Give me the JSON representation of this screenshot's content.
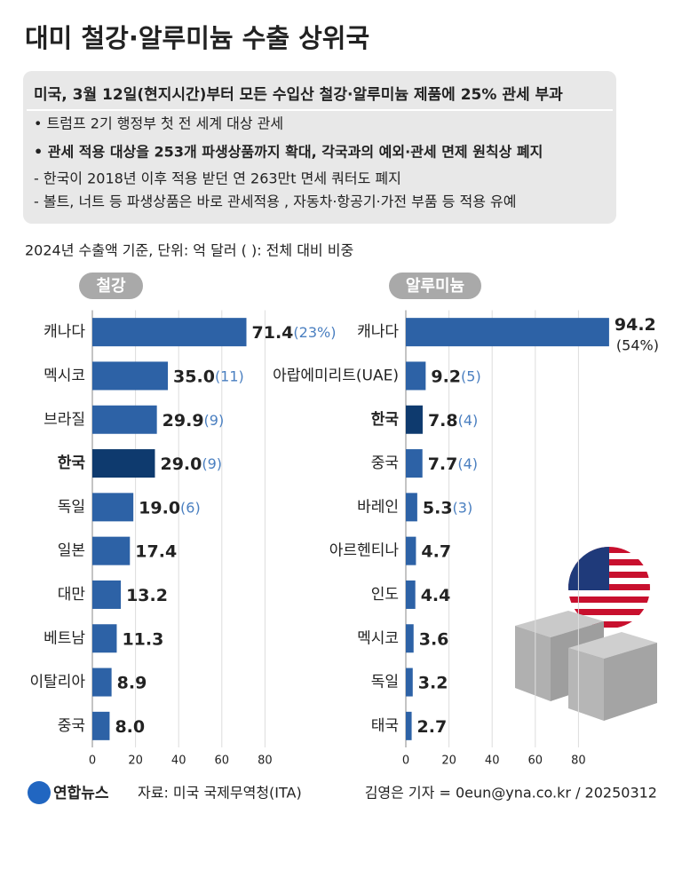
{
  "header": {
    "title": "대미 철강·알루미늄 수출 상위국",
    "headline": "미국, 3월 12일(현지시간)부터 모든 수입산 철강·알루미늄 제품에 25% 관세 부과",
    "lines": [
      "• 트럼프 2기 행정부 첫 전 세계 대상 관세",
      "• 관세 적용 대상을 253개 파생상품까지 확대, 각국과의 예외·관세 면제 원칙상 폐지",
      "- 한국이 2018년 이후 적용 받던 연 263만t 면세 쿼터도 폐지",
      "- 볼트, 너트 등 파생상품은 바로 관세적용 , 자동차·항공기·가전 부품 등 적용 유예"
    ],
    "unit_note": "2024년 수출액 기준, 단위: 억 달러   ( ): 전체 대비 비중"
  },
  "chart_data": [
    {
      "type": "bar",
      "orientation": "horizontal",
      "title": "철강",
      "categories": [
        "캐나다",
        "멕시코",
        "브라질",
        "한국",
        "독일",
        "일본",
        "대만",
        "베트남",
        "이탈리아",
        "중국"
      ],
      "values": [
        71.4,
        35.0,
        29.9,
        29.0,
        19.0,
        17.4,
        13.2,
        11.3,
        8.9,
        8.0
      ],
      "value_labels": [
        "71.4",
        "35.0",
        "29.9",
        "29.0",
        "19.0",
        "17.4",
        "13.2",
        "11.3",
        "8.9",
        "8.0"
      ],
      "share_labels": [
        "(23%)",
        "(11)",
        "(9)",
        "(9)",
        "(6)",
        null,
        null,
        null,
        null,
        null
      ],
      "color": "#2d62a6",
      "highlight_index": 3,
      "highlight_color": "#0e3a6e",
      "xlim": [
        0,
        80
      ],
      "xticks": [
        0,
        20,
        40,
        60,
        80
      ],
      "grid": true
    },
    {
      "type": "bar",
      "orientation": "horizontal",
      "title": "알루미늄",
      "categories": [
        "캐나다",
        "아랍에미리트(UAE)",
        "한국",
        "중국",
        "바레인",
        "아르헨티나",
        "인도",
        "멕시코",
        "독일",
        "태국"
      ],
      "values": [
        94.2,
        9.2,
        7.8,
        7.7,
        5.3,
        4.7,
        4.4,
        3.6,
        3.2,
        2.7
      ],
      "share_labels": [
        "(54%)",
        "(5)",
        "(4)",
        "(4)",
        "(3)",
        null,
        null,
        null,
        null,
        null
      ],
      "color": "#2d62a6",
      "highlight_index": 2,
      "highlight_color": "#0e3a6e",
      "xlim": [
        0,
        95
      ],
      "xticks": [
        0,
        20,
        40,
        60,
        80
      ],
      "grid": true
    }
  ],
  "footer": {
    "logo": "연합뉴스",
    "source": "자료: 미국 국제무역청(ITA)",
    "credit": "김영은 기자 = 0eun@yna.co.kr / 20250312"
  }
}
